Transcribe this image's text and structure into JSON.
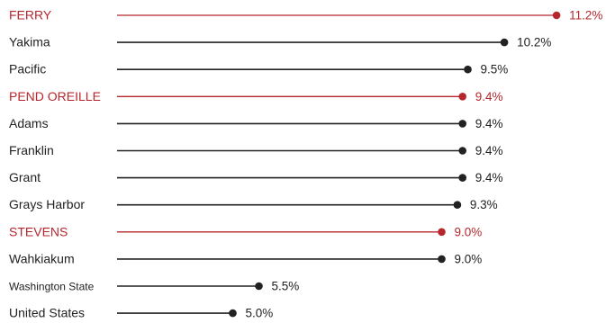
{
  "chart_data": {
    "type": "lollipop",
    "unit": "%",
    "colors": {
      "default": "#222222",
      "highlight": "#b5272d"
    },
    "categories": [
      "FERRY",
      "Yakima",
      "Pacific",
      "PEND OREILLE",
      "Adams",
      "Franklin",
      "Grant",
      "Grays Harbor",
      "STEVENS",
      "Wahkiakum",
      "Washington State",
      "United States"
    ],
    "values": [
      11.2,
      10.2,
      9.5,
      9.4,
      9.4,
      9.4,
      9.4,
      9.3,
      9.0,
      9.0,
      5.5,
      5.0
    ],
    "value_labels": [
      "11.2%",
      "10.2%",
      "9.5%",
      "9.4%",
      "9.4%",
      "9.4%",
      "9.4%",
      "9.3%",
      "9.0%",
      "9.0%",
      "5.5%",
      "5.0%"
    ],
    "highlighted": [
      true,
      false,
      false,
      true,
      false,
      false,
      false,
      false,
      true,
      false,
      false,
      false
    ]
  }
}
